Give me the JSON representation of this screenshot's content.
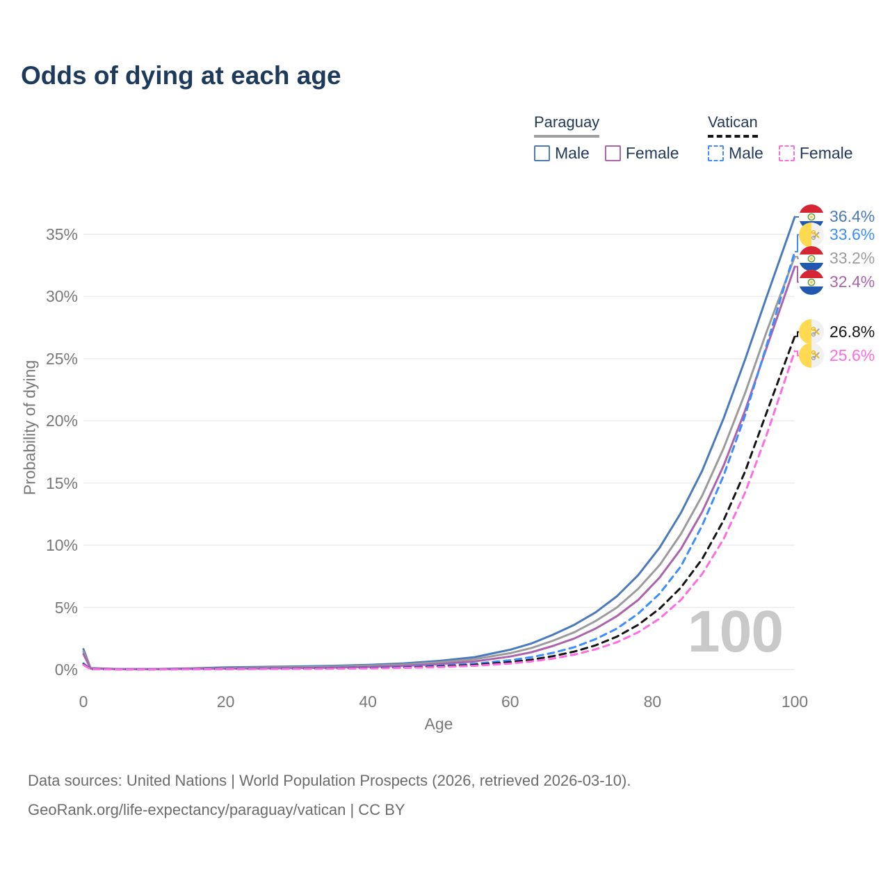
{
  "title": "Odds of dying at each age",
  "watermark": "100",
  "legend": {
    "groups": [
      {
        "label": "Paraguay",
        "underline_color": "#9e9e9e",
        "underline_style": "solid",
        "items": [
          {
            "label": "Male",
            "color": "#4a7abd",
            "style": "solid"
          },
          {
            "label": "Female",
            "color": "#ab64ab",
            "style": "solid"
          }
        ]
      },
      {
        "label": "Vatican",
        "underline_color": "#141414",
        "underline_style": "dashed",
        "items": [
          {
            "label": "Male",
            "color": "#3c8dff",
            "style": "dashed"
          },
          {
            "label": "Female",
            "color": "#ff6be0",
            "style": "dashed"
          }
        ]
      }
    ]
  },
  "chart_data": {
    "type": "line",
    "title": "Odds of dying at each age",
    "xlabel": "Age",
    "ylabel": "Probability of dying",
    "xlim": [
      0,
      100
    ],
    "ylim": [
      0,
      37
    ],
    "grid": "horizontal",
    "legend_position": "top-right",
    "xticks": [
      0,
      20,
      40,
      60,
      80,
      100
    ],
    "xtick_labels": [
      "0",
      "20",
      "40",
      "60",
      "80",
      "100"
    ],
    "yticks": [
      0,
      5,
      10,
      15,
      20,
      25,
      30,
      35
    ],
    "ytick_labels": [
      "0%",
      "5%",
      "10%",
      "15%",
      "20%",
      "25%",
      "30%",
      "35%"
    ],
    "x": [
      0,
      1,
      5,
      10,
      15,
      20,
      25,
      30,
      35,
      40,
      45,
      50,
      55,
      60,
      63,
      66,
      69,
      72,
      75,
      78,
      81,
      84,
      87,
      90,
      93,
      96,
      100
    ],
    "series": [
      {
        "name": "Paraguay Male",
        "country": "Paraguay",
        "sex": "male",
        "color": "#4a7abd",
        "dash": "solid",
        "flag": "py",
        "end_label": "36.4%",
        "end_label_color": "#4a7abd",
        "values": [
          1.65,
          0.12,
          0.05,
          0.05,
          0.1,
          0.18,
          0.22,
          0.25,
          0.3,
          0.38,
          0.5,
          0.7,
          1.0,
          1.6,
          2.1,
          2.8,
          3.6,
          4.6,
          5.9,
          7.6,
          9.8,
          12.6,
          16.0,
          20.2,
          24.9,
          29.9,
          36.4
        ]
      },
      {
        "name": "Paraguay",
        "country": "Paraguay",
        "sex": "both",
        "color": "#9b9b9b",
        "dash": "solid",
        "flag": "py",
        "end_label": "33.2%",
        "end_label_color": "#9b9b9b",
        "values": [
          1.45,
          0.1,
          0.04,
          0.04,
          0.08,
          0.13,
          0.16,
          0.19,
          0.24,
          0.31,
          0.41,
          0.58,
          0.84,
          1.32,
          1.74,
          2.32,
          3.0,
          3.9,
          5.0,
          6.5,
          8.4,
          10.9,
          14.0,
          17.8,
          22.2,
          27.1,
          33.2
        ]
      },
      {
        "name": "Paraguay Female",
        "country": "Paraguay",
        "sex": "female",
        "color": "#ab64ab",
        "dash": "solid",
        "flag": "py",
        "end_label": "32.4%",
        "end_label_color": "#ab64ab",
        "values": [
          1.25,
          0.09,
          0.035,
          0.035,
          0.06,
          0.08,
          0.1,
          0.12,
          0.16,
          0.22,
          0.3,
          0.44,
          0.66,
          1.05,
          1.4,
          1.9,
          2.5,
          3.3,
          4.3,
          5.6,
          7.4,
          9.7,
          12.7,
          16.4,
          20.8,
          25.8,
          32.4
        ]
      },
      {
        "name": "Vatican Male",
        "country": "Vatican",
        "sex": "male",
        "color": "#3c8dff",
        "dash": "dashed",
        "flag": "va",
        "end_label": "33.6%",
        "end_label_color": "#3c8dff",
        "values": [
          0.5,
          0.04,
          0.02,
          0.02,
          0.04,
          0.06,
          0.07,
          0.09,
          0.11,
          0.15,
          0.21,
          0.31,
          0.47,
          0.75,
          1.0,
          1.35,
          1.8,
          2.45,
          3.3,
          4.5,
          6.1,
          8.3,
          11.6,
          15.6,
          20.4,
          26.0,
          33.6
        ]
      },
      {
        "name": "Vatican",
        "country": "Vatican",
        "sex": "both",
        "color": "#141414",
        "dash": "dashed",
        "flag": "va",
        "end_label": "26.8%",
        "end_label_color": "#141414",
        "values": [
          0.42,
          0.035,
          0.018,
          0.018,
          0.03,
          0.045,
          0.055,
          0.07,
          0.09,
          0.12,
          0.17,
          0.25,
          0.38,
          0.6,
          0.8,
          1.08,
          1.45,
          1.95,
          2.65,
          3.6,
          4.9,
          6.6,
          8.9,
          12.0,
          15.9,
          20.6,
          26.8
        ]
      },
      {
        "name": "Vatican Female",
        "country": "Vatican",
        "sex": "female",
        "color": "#ff6be0",
        "dash": "dashed",
        "flag": "va",
        "end_label": "25.6%",
        "end_label_color": "#ff6be0",
        "values": [
          0.38,
          0.03,
          0.015,
          0.015,
          0.025,
          0.035,
          0.045,
          0.055,
          0.07,
          0.095,
          0.135,
          0.2,
          0.31,
          0.49,
          0.66,
          0.89,
          1.2,
          1.63,
          2.2,
          3.0,
          4.1,
          5.6,
          7.7,
          10.5,
          14.2,
          18.8,
          25.6
        ]
      }
    ]
  },
  "footer": {
    "line1": "Data sources: United Nations | World Population Prospects (2026, retrieved 2026-03-10).",
    "line2": "GeoRank.org/life-expectancy/paraguay/vatican | CC BY"
  }
}
